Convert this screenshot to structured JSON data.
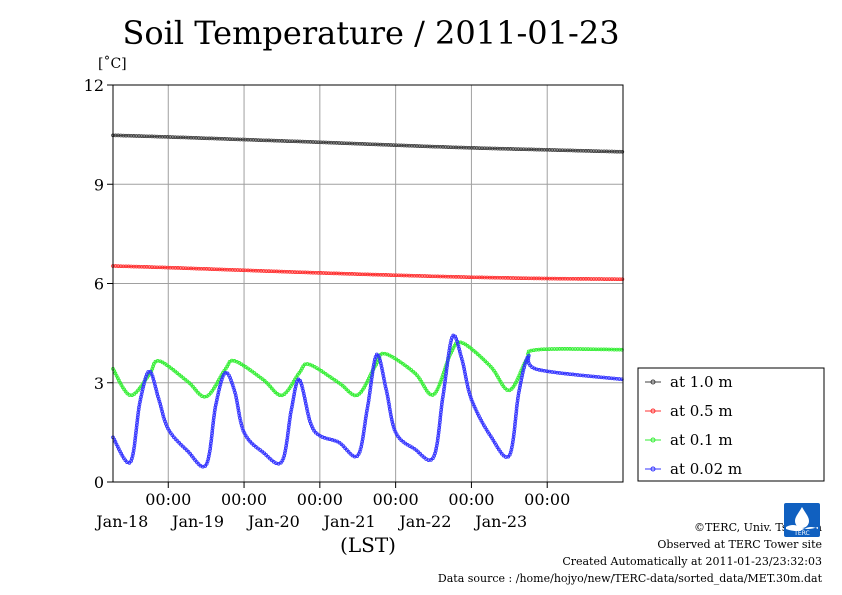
{
  "title": "Soil Temperature / 2011-01-23",
  "credits": {
    "copyright": "©TERC, Univ. Tsukuba",
    "site": "Observed at TERC Tower site",
    "created": "Created Automatically at 2011-01-23/23:32:03",
    "source": "Data source : /home/hojyo/new/TERC-data/sorted_data/MET.30m.dat"
  },
  "logo": {
    "icon": "terc-logo-icon",
    "text": "TERC",
    "color": "#1060c0"
  },
  "chart_data": {
    "type": "line",
    "title": "Soil Temperature / 2011-01-23",
    "ylabel": "[˚C]",
    "xlabel": "(LST)",
    "ylim": [
      0,
      12
    ],
    "yticks": [
      0,
      3,
      6,
      9,
      12
    ],
    "xlim": [
      "2011-01-17 06:30",
      "2011-01-24 00:00"
    ],
    "xticks": [
      {
        "x": "2011-01-18 00:00",
        "time_label": "00:00",
        "date_label": "Jan-18"
      },
      {
        "x": "2011-01-19 00:00",
        "time_label": "00:00",
        "date_label": "Jan-19"
      },
      {
        "x": "2011-01-20 00:00",
        "time_label": "00:00",
        "date_label": "Jan-20"
      },
      {
        "x": "2011-01-21 00:00",
        "time_label": "00:00",
        "date_label": "Jan-21"
      },
      {
        "x": "2011-01-22 00:00",
        "time_label": "00:00",
        "date_label": "Jan-22"
      },
      {
        "x": "2011-01-23 00:00",
        "time_label": "00:00",
        "date_label": "Jan-23"
      }
    ],
    "grid": true,
    "legend_position": "right",
    "series": [
      {
        "name": "at 1.0 m",
        "color": "#404040",
        "points": [
          [
            "2011-01-17 06:30",
            10.48
          ],
          [
            "2011-01-18 00:00",
            10.43
          ],
          [
            "2011-01-19 00:00",
            10.35
          ],
          [
            "2011-01-20 00:00",
            10.27
          ],
          [
            "2011-01-21 00:00",
            10.18
          ],
          [
            "2011-01-22 00:00",
            10.1
          ],
          [
            "2011-01-23 00:00",
            10.04
          ],
          [
            "2011-01-24 00:00",
            9.98
          ]
        ]
      },
      {
        "name": "at 0.5 m",
        "color": "#ff3030",
        "points": [
          [
            "2011-01-17 06:30",
            6.53
          ],
          [
            "2011-01-18 00:00",
            6.48
          ],
          [
            "2011-01-19 00:00",
            6.4
          ],
          [
            "2011-01-20 00:00",
            6.32
          ],
          [
            "2011-01-21 00:00",
            6.25
          ],
          [
            "2011-01-22 00:00",
            6.19
          ],
          [
            "2011-01-23 00:00",
            6.15
          ],
          [
            "2011-01-24 00:00",
            6.13
          ]
        ]
      },
      {
        "name": "at 0.1 m",
        "color": "#33ee33",
        "points": [
          [
            "2011-01-17 06:30",
            3.42
          ],
          [
            "2011-01-17 12:00",
            2.62
          ],
          [
            "2011-01-17 18:00",
            3.25
          ],
          [
            "2011-01-17 21:00",
            3.66
          ],
          [
            "2011-01-18 06:00",
            3.05
          ],
          [
            "2011-01-18 12:00",
            2.58
          ],
          [
            "2011-01-18 18:00",
            3.4
          ],
          [
            "2011-01-18 21:00",
            3.66
          ],
          [
            "2011-01-19 06:00",
            3.1
          ],
          [
            "2011-01-19 12:00",
            2.62
          ],
          [
            "2011-01-19 17:30",
            3.3
          ],
          [
            "2011-01-19 20:30",
            3.56
          ],
          [
            "2011-01-20 06:00",
            3.0
          ],
          [
            "2011-01-20 12:00",
            2.63
          ],
          [
            "2011-01-20 17:30",
            3.5
          ],
          [
            "2011-01-20 20:30",
            3.88
          ],
          [
            "2011-01-21 06:00",
            3.3
          ],
          [
            "2011-01-21 12:00",
            2.64
          ],
          [
            "2011-01-21 17:30",
            3.9
          ],
          [
            "2011-01-21 21:00",
            4.21
          ],
          [
            "2011-01-22 06:00",
            3.5
          ],
          [
            "2011-01-22 12:00",
            2.77
          ],
          [
            "2011-01-22 17:30",
            3.7
          ],
          [
            "2011-01-22 21:00",
            4.0
          ],
          [
            "2011-01-24 00:00",
            4.0
          ]
        ]
      },
      {
        "name": "at 0.02 m",
        "color": "#3333ff",
        "points": [
          [
            "2011-01-17 06:30",
            1.35
          ],
          [
            "2011-01-17 12:00",
            0.6
          ],
          [
            "2011-01-17 15:00",
            2.4
          ],
          [
            "2011-01-17 18:00",
            3.35
          ],
          [
            "2011-01-17 21:00",
            2.5
          ],
          [
            "2011-01-18 00:00",
            1.6
          ],
          [
            "2011-01-18 06:00",
            0.95
          ],
          [
            "2011-01-18 12:00",
            0.52
          ],
          [
            "2011-01-18 15:00",
            2.3
          ],
          [
            "2011-01-18 18:00",
            3.3
          ],
          [
            "2011-01-18 21:00",
            2.75
          ],
          [
            "2011-01-19 00:00",
            1.5
          ],
          [
            "2011-01-19 06:00",
            0.9
          ],
          [
            "2011-01-19 12:00",
            0.62
          ],
          [
            "2011-01-19 15:00",
            2.2
          ],
          [
            "2011-01-19 17:30",
            3.1
          ],
          [
            "2011-01-19 21:00",
            1.8
          ],
          [
            "2011-01-20 00:00",
            1.4
          ],
          [
            "2011-01-20 06:00",
            1.2
          ],
          [
            "2011-01-20 12:00",
            0.8
          ],
          [
            "2011-01-20 15:00",
            2.2
          ],
          [
            "2011-01-20 18:00",
            3.85
          ],
          [
            "2011-01-20 21:00",
            2.8
          ],
          [
            "2011-01-21 00:00",
            1.5
          ],
          [
            "2011-01-21 06:00",
            1.0
          ],
          [
            "2011-01-21 12:00",
            0.75
          ],
          [
            "2011-01-21 15:00",
            2.6
          ],
          [
            "2011-01-21 18:00",
            4.4
          ],
          [
            "2011-01-21 21:00",
            3.7
          ],
          [
            "2011-01-22 00:00",
            2.5
          ],
          [
            "2011-01-22 06:00",
            1.4
          ],
          [
            "2011-01-22 12:00",
            0.8
          ],
          [
            "2011-01-22 15:00",
            2.7
          ],
          [
            "2011-01-22 18:00",
            3.8
          ],
          [
            "2011-01-22 21:00",
            3.4
          ],
          [
            "2011-01-24 00:00",
            3.1
          ]
        ]
      }
    ]
  }
}
